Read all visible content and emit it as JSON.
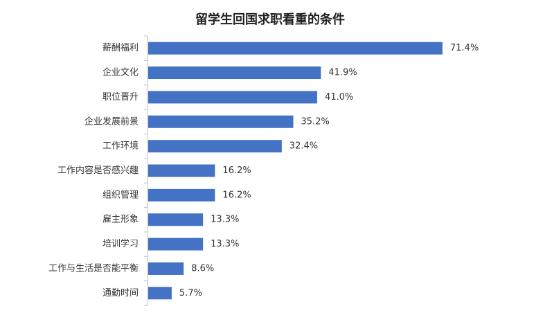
{
  "chart_data": {
    "type": "bar",
    "orientation": "horizontal",
    "title": "留学生回国求职看重的条件",
    "xlabel": "",
    "ylabel": "",
    "categories": [
      "薪酬福利",
      "企业文化",
      "职位晋升",
      "企业发展前景",
      "工作环境",
      "工作内容是否感兴趣",
      "组织管理",
      "雇主形象",
      "培训学习",
      "工作与生活是否能平衡",
      "通勤时间"
    ],
    "values": [
      71.4,
      41.9,
      41.0,
      35.2,
      32.4,
      16.2,
      16.2,
      13.3,
      13.3,
      8.6,
      5.7
    ],
    "value_labels": [
      "71.4%",
      "41.9%",
      "41.0%",
      "35.2%",
      "32.4%",
      "16.2%",
      "16.2%",
      "13.3%",
      "13.3%",
      "8.6%",
      "5.7%"
    ],
    "xlim": [
      0,
      73
    ],
    "grid": false,
    "legend": "none",
    "bar_color": "#4472C4"
  }
}
